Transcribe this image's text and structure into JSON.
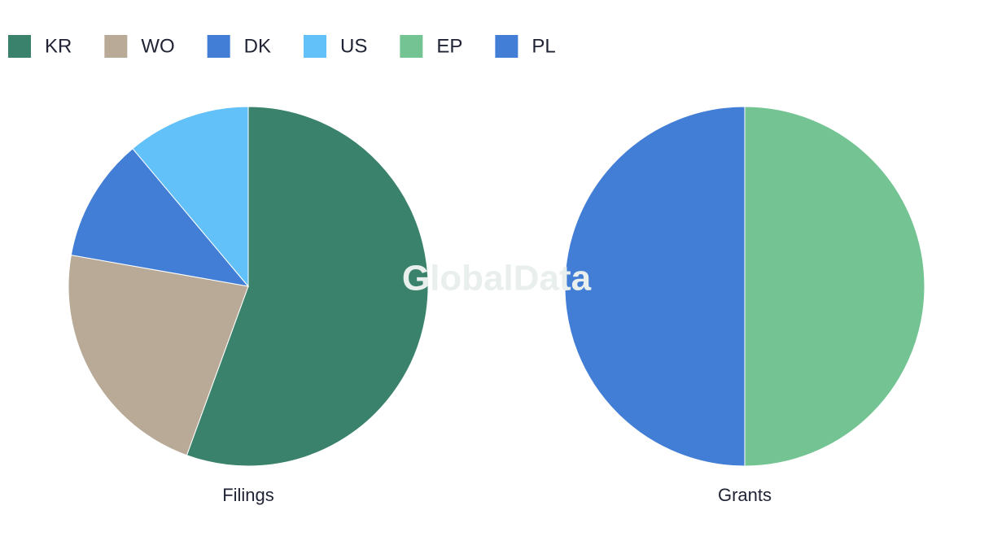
{
  "chart_data": [
    {
      "type": "pie",
      "title": "Filings",
      "categories": [
        "KR",
        "WO",
        "DK",
        "US"
      ],
      "values": [
        5,
        2,
        1,
        1
      ],
      "colors": [
        "#3a826c",
        "#b8aa97",
        "#427ed6",
        "#62c1f9"
      ]
    },
    {
      "type": "pie",
      "title": "Grants",
      "categories": [
        "EP",
        "PL"
      ],
      "values": [
        1,
        1
      ],
      "colors": [
        "#74c393",
        "#427ed6"
      ]
    }
  ],
  "watermark": "GlobalData"
}
